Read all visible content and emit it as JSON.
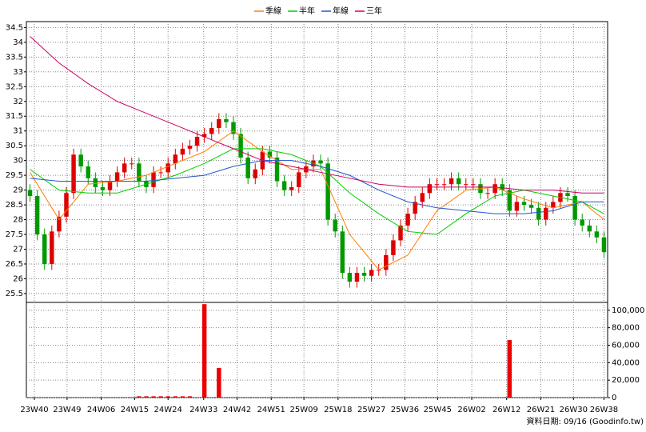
{
  "chart_data": {
    "type": "candlestick",
    "grid": true,
    "legend": "top",
    "source": "資料日期: 09/16  (Goodinfo.tw)",
    "xlim": [
      0,
      80
    ],
    "xticks": [
      {
        "value": 1.1,
        "label": "23W40"
      },
      {
        "value": 5.6,
        "label": "23W49"
      },
      {
        "value": 10.3,
        "label": "24W06"
      },
      {
        "value": 14.9,
        "label": "24W15"
      },
      {
        "value": 19.5,
        "label": "24W24"
      },
      {
        "value": 24.4,
        "label": "24W33"
      },
      {
        "value": 29.0,
        "label": "24W42"
      },
      {
        "value": 33.7,
        "label": "24W51"
      },
      {
        "value": 38.2,
        "label": "25W09"
      },
      {
        "value": 42.9,
        "label": "25W18"
      },
      {
        "value": 47.5,
        "label": "25W27"
      },
      {
        "value": 52.1,
        "label": "25W36"
      },
      {
        "value": 56.6,
        "label": "25W45"
      },
      {
        "value": 61.3,
        "label": "26W02"
      },
      {
        "value": 66.1,
        "label": "26W12"
      },
      {
        "value": 70.8,
        "label": "26W21"
      },
      {
        "value": 75.3,
        "label": "26W30"
      },
      {
        "value": 79.5,
        "label": "26W38"
      }
    ],
    "ylim": [
      25.2,
      34.7
    ],
    "yticks": [
      25.5,
      26,
      26.5,
      27,
      27.5,
      28,
      28.5,
      29,
      29.5,
      30,
      30.5,
      31,
      31.5,
      32,
      32.5,
      33,
      33.5,
      34,
      34.5
    ],
    "up_color": "#dd0000",
    "down_color": "#009900",
    "open": [
      29.0,
      28.8,
      27.5,
      26.5,
      27.6,
      28.1,
      28.9,
      30.2,
      29.8,
      29.4,
      29.1,
      29.0,
      29.3,
      29.6,
      29.9,
      29.9,
      29.3,
      29.1,
      29.6,
      29.6,
      29.9,
      30.2,
      30.4,
      30.5,
      30.8,
      30.9,
      31.1,
      31.4,
      31.3,
      30.9,
      30.1,
      29.4,
      29.7,
      30.3,
      30.1,
      29.3,
      29.0,
      29.1,
      29.6,
      29.8,
      30.0,
      29.9,
      28.0,
      27.6,
      26.2,
      25.9,
      26.2,
      26.1,
      26.3,
      26.3,
      26.8,
      27.3,
      27.8,
      28.2,
      28.6,
      28.9,
      29.2,
      29.2,
      29.2,
      29.4,
      29.2,
      29.2,
      29.2,
      28.9,
      28.9,
      29.2,
      29.0,
      28.3,
      28.6,
      28.5,
      28.4,
      28.0,
      28.4,
      28.6,
      28.9,
      28.8,
      28.0,
      27.8,
      27.6,
      27.4
    ],
    "high": [
      29.2,
      29.0,
      27.7,
      27.8,
      28.3,
      29.1,
      30.4,
      30.4,
      30.0,
      29.6,
      29.3,
      29.5,
      29.8,
      30.1,
      30.1,
      30.1,
      29.5,
      29.8,
      29.8,
      30.1,
      30.4,
      30.6,
      30.7,
      31.0,
      31.1,
      31.3,
      31.6,
      31.6,
      31.5,
      31.1,
      30.3,
      29.9,
      30.5,
      30.5,
      30.3,
      29.5,
      29.3,
      29.8,
      30.0,
      30.2,
      30.2,
      30.1,
      28.2,
      27.8,
      26.4,
      26.4,
      26.4,
      26.5,
      26.5,
      27.0,
      27.5,
      28.0,
      28.4,
      28.8,
      29.1,
      29.4,
      29.4,
      29.4,
      29.6,
      29.6,
      29.4,
      29.4,
      29.4,
      29.1,
      29.4,
      29.4,
      29.2,
      28.8,
      28.8,
      28.7,
      28.6,
      28.6,
      28.8,
      29.1,
      29.1,
      29.0,
      28.2,
      28.0,
      27.8,
      27.6
    ],
    "low": [
      28.6,
      27.3,
      26.3,
      26.3,
      27.4,
      27.9,
      28.7,
      29.6,
      29.2,
      28.9,
      28.8,
      28.8,
      29.1,
      29.4,
      29.7,
      29.1,
      28.9,
      28.9,
      29.4,
      29.4,
      29.7,
      30.0,
      30.2,
      30.3,
      30.6,
      30.7,
      30.9,
      31.1,
      30.7,
      29.9,
      29.2,
      29.2,
      29.5,
      29.9,
      29.1,
      28.8,
      28.8,
      28.9,
      29.4,
      29.6,
      29.7,
      27.8,
      27.4,
      26.0,
      25.7,
      25.7,
      25.9,
      25.9,
      26.1,
      26.1,
      26.6,
      27.1,
      27.6,
      28.0,
      28.4,
      28.7,
      29.0,
      29.0,
      29.0,
      29.0,
      29.0,
      29.0,
      28.7,
      28.7,
      28.7,
      28.8,
      28.1,
      28.1,
      28.3,
      28.2,
      27.8,
      27.8,
      28.2,
      28.4,
      28.6,
      27.8,
      27.6,
      27.4,
      27.2,
      26.7
    ],
    "close": [
      28.8,
      27.5,
      26.5,
      27.6,
      28.1,
      28.9,
      30.2,
      29.8,
      29.4,
      29.1,
      29.0,
      29.3,
      29.6,
      29.9,
      29.9,
      29.3,
      29.1,
      29.6,
      29.6,
      29.9,
      30.2,
      30.4,
      30.5,
      30.8,
      30.9,
      31.1,
      31.4,
      31.3,
      30.9,
      30.1,
      29.4,
      29.7,
      30.3,
      30.1,
      29.3,
      29.0,
      29.1,
      29.6,
      29.8,
      30.0,
      29.9,
      28.0,
      27.6,
      26.2,
      25.9,
      26.2,
      26.1,
      26.3,
      26.3,
      26.8,
      27.3,
      27.8,
      28.2,
      28.6,
      28.9,
      29.2,
      29.2,
      29.2,
      29.4,
      29.2,
      29.2,
      29.2,
      28.9,
      28.9,
      29.2,
      29.0,
      28.3,
      28.6,
      28.5,
      28.4,
      28.0,
      28.4,
      28.6,
      28.9,
      28.8,
      28.0,
      27.8,
      27.6,
      27.4,
      26.9
    ],
    "series": [
      {
        "name": "季線",
        "color": "#ff7f00",
        "x": [
          0,
          4,
          8,
          12,
          16,
          20,
          24,
          28,
          32,
          36,
          40,
          44,
          48,
          52,
          56,
          60,
          64,
          68,
          72,
          76,
          79
        ],
        "values": [
          29.6,
          28.0,
          29.2,
          29.3,
          29.5,
          29.9,
          30.3,
          31.0,
          30.3,
          29.7,
          29.7,
          27.5,
          26.3,
          26.8,
          28.3,
          29.0,
          29.1,
          28.7,
          28.4,
          28.6,
          28.0
        ]
      },
      {
        "name": "半年",
        "color": "#00cc00",
        "x": [
          0,
          4,
          8,
          12,
          16,
          20,
          24,
          28,
          32,
          36,
          40,
          44,
          48,
          52,
          56,
          60,
          64,
          68,
          72,
          76,
          79
        ],
        "values": [
          29.7,
          29.0,
          28.9,
          28.9,
          29.2,
          29.5,
          29.9,
          30.4,
          30.4,
          30.2,
          29.8,
          28.9,
          28.2,
          27.6,
          27.5,
          28.2,
          28.8,
          29.0,
          28.8,
          28.6,
          28.2
        ]
      },
      {
        "name": "年線",
        "color": "#2255cc",
        "x": [
          0,
          4,
          8,
          12,
          16,
          20,
          24,
          28,
          32,
          36,
          40,
          44,
          48,
          52,
          56,
          60,
          64,
          68,
          72,
          76,
          79
        ],
        "values": [
          29.4,
          29.3,
          29.3,
          29.3,
          29.3,
          29.4,
          29.5,
          29.8,
          30.0,
          30.0,
          29.8,
          29.5,
          29.0,
          28.6,
          28.4,
          28.3,
          28.2,
          28.2,
          28.3,
          28.6,
          28.6
        ]
      },
      {
        "name": "三年",
        "color": "#cc0066",
        "x": [
          0,
          4,
          8,
          12,
          16,
          20,
          24,
          28,
          32,
          36,
          40,
          44,
          48,
          52,
          56,
          60,
          64,
          68,
          72,
          76,
          79
        ],
        "values": [
          34.2,
          33.3,
          32.6,
          32.0,
          31.6,
          31.2,
          30.8,
          30.4,
          30.0,
          29.8,
          29.6,
          29.4,
          29.2,
          29.1,
          29.1,
          29.1,
          29.1,
          29.0,
          29.0,
          28.9,
          28.9
        ]
      }
    ],
    "volume": {
      "color": "#ee0000",
      "ylim": [
        0,
        109000
      ],
      "yticks": [
        0,
        {
          "value": 20000,
          "label": "20,000"
        },
        {
          "value": 40000,
          "label": "40,000"
        },
        {
          "value": 60000,
          "label": "60,000"
        },
        {
          "value": 80000,
          "label": "80,000"
        },
        {
          "value": 100000,
          "label": "100,000"
        }
      ],
      "values": [
        500,
        500,
        500,
        500,
        500,
        500,
        500,
        500,
        500,
        500,
        500,
        500,
        500,
        500,
        500,
        1500,
        1500,
        1500,
        1500,
        1500,
        1500,
        1500,
        1500,
        500,
        107000,
        500,
        34000,
        500,
        500,
        500,
        500,
        500,
        500,
        500,
        500,
        500,
        500,
        500,
        500,
        500,
        500,
        500,
        500,
        500,
        500,
        500,
        500,
        500,
        500,
        500,
        500,
        500,
        500,
        500,
        500,
        500,
        500,
        500,
        500,
        500,
        500,
        500,
        500,
        500,
        500,
        500,
        66000,
        500,
        500,
        500,
        500,
        500,
        500,
        500,
        500,
        500,
        500,
        500,
        500,
        500
      ]
    }
  }
}
